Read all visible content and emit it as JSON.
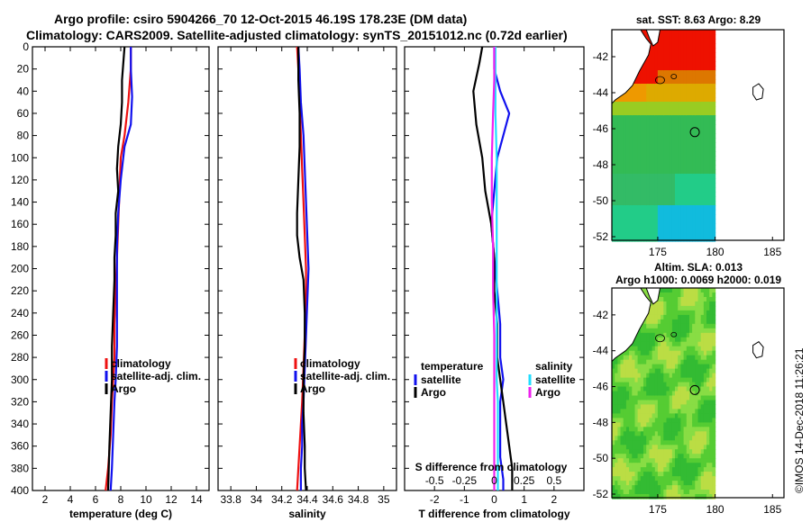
{
  "title": {
    "line1": "Argo profile: csiro 5904266_70 12-Oct-2015 46.19S 178.23E (DM data)",
    "line2": "Climatology: CARS2009. Satellite-adjusted climatology: synTS_20151012.nc (0.72d earlier)"
  },
  "watermark": "©IMOS 14-Dec-2018 11:26:21",
  "colors": {
    "climatology": "#ee1111",
    "satellite": "#1111ee",
    "argo": "#000000",
    "sat_s": "#22ddff",
    "argo_s": "#ee22ee"
  },
  "chart_data": [
    {
      "type": "line",
      "title": "",
      "xlabel": "temperature (deg C)",
      "ylabel": "",
      "xlim": [
        1,
        15
      ],
      "ylim": [
        400,
        0
      ],
      "xticks": [
        "2",
        "4",
        "6",
        "8",
        "10",
        "12",
        "14"
      ],
      "xtick_values": [
        2,
        4,
        6,
        8,
        10,
        12,
        14
      ],
      "yticks": [
        "0",
        "20",
        "40",
        "60",
        "80",
        "100",
        "120",
        "140",
        "160",
        "180",
        "200",
        "220",
        "240",
        "260",
        "280",
        "300",
        "320",
        "340",
        "360",
        "380",
        "400"
      ],
      "legend": [
        "climatology",
        "satellite-adj. clim.",
        "Argo"
      ],
      "legend_position": "center-right",
      "series": [
        {
          "name": "climatology",
          "color": "#ee1111",
          "x": [
            8.8,
            8.8,
            8.6,
            8.3,
            8.0,
            7.9,
            7.8,
            7.7,
            7.6,
            7.5,
            7.5,
            7.4,
            7.3,
            7.2,
            7.0,
            6.8
          ],
          "y": [
            0,
            20,
            50,
            80,
            100,
            130,
            160,
            190,
            220,
            250,
            280,
            300,
            320,
            350,
            380,
            400
          ]
        },
        {
          "name": "satellite-adj. clim.",
          "color": "#1111ee",
          "x": [
            8.8,
            8.8,
            8.9,
            8.8,
            8.3,
            8.0,
            7.8,
            7.7,
            7.7,
            7.7,
            7.7,
            7.6,
            7.5,
            7.4,
            7.3,
            7.2
          ],
          "y": [
            0,
            20,
            45,
            70,
            90,
            120,
            150,
            180,
            210,
            240,
            270,
            300,
            320,
            350,
            380,
            400
          ]
        },
        {
          "name": "Argo",
          "color": "#000000",
          "x": [
            8.3,
            8.2,
            8.1,
            8.1,
            8.0,
            7.8,
            7.7,
            7.8,
            7.6,
            7.6,
            7.5,
            7.5,
            7.4,
            7.3,
            7.3,
            7.2,
            7.1,
            7.0
          ],
          "y": [
            0,
            15,
            30,
            50,
            70,
            90,
            110,
            130,
            150,
            170,
            190,
            210,
            240,
            270,
            300,
            330,
            360,
            400
          ]
        }
      ]
    },
    {
      "type": "line",
      "title": "",
      "xlabel": "salinity",
      "ylabel": "",
      "xlim": [
        33.7,
        35.1
      ],
      "ylim": [
        400,
        0
      ],
      "xticks": [
        "33.8",
        "34",
        "34.2",
        "34.4",
        "34.6",
        "34.8",
        "35"
      ],
      "xtick_values": [
        33.8,
        34.0,
        34.2,
        34.4,
        34.6,
        34.8,
        35.0
      ],
      "legend": [
        "climatology",
        "satellite-adj. clim.",
        "Argo"
      ],
      "legend_position": "center-right",
      "series": [
        {
          "name": "climatology",
          "color": "#ee1111",
          "x": [
            34.32,
            34.33,
            34.34,
            34.35,
            34.36,
            34.37,
            34.38,
            34.39,
            34.39,
            34.38,
            34.37,
            34.36,
            34.35,
            34.34,
            34.33,
            34.32
          ],
          "y": [
            0,
            20,
            50,
            80,
            110,
            140,
            170,
            200,
            230,
            260,
            290,
            320,
            340,
            360,
            380,
            400
          ]
        },
        {
          "name": "satellite-adj. clim.",
          "color": "#1111ee",
          "x": [
            34.33,
            34.34,
            34.35,
            34.37,
            34.38,
            34.39,
            34.4,
            34.41,
            34.4,
            34.39,
            34.38,
            34.37,
            34.36,
            34.36,
            34.35,
            34.35
          ],
          "y": [
            0,
            20,
            50,
            80,
            110,
            140,
            170,
            200,
            230,
            260,
            290,
            320,
            340,
            360,
            380,
            400
          ]
        },
        {
          "name": "Argo",
          "color": "#000000",
          "x": [
            34.33,
            34.33,
            34.34,
            34.34,
            34.33,
            34.32,
            34.32,
            34.34,
            34.37,
            34.38,
            34.38,
            34.37,
            34.37,
            34.38,
            34.38,
            34.39
          ],
          "y": [
            0,
            30,
            60,
            90,
            120,
            150,
            170,
            190,
            210,
            240,
            270,
            300,
            330,
            360,
            380,
            400
          ]
        }
      ]
    },
    {
      "type": "line",
      "title": "",
      "xlabel": "T difference from climatology",
      "x2label": "S difference from climatology",
      "ylabel": "",
      "xlim": [
        -3,
        3
      ],
      "ylim": [
        400,
        0
      ],
      "xticks": [
        "-2",
        "-1",
        "0",
        "1",
        "2"
      ],
      "xtick_values": [
        -2,
        -1,
        0,
        1,
        2
      ],
      "x2lim": [
        -0.75,
        0.75
      ],
      "x2ticks": [
        "-0.5",
        "-0.25",
        "0",
        "0.25",
        "0.5"
      ],
      "x2tick_values": [
        -0.5,
        -0.25,
        0,
        0.25,
        0.5
      ],
      "legend_left_title": "temperature",
      "legend_right_title": "salinity",
      "legend_left": [
        "satellite",
        "Argo"
      ],
      "legend_right": [
        "satellite",
        "Argo"
      ],
      "series": [
        {
          "name": "temperature satellite",
          "color": "#1111ee",
          "x": [
            0.0,
            0.0,
            0.2,
            0.5,
            0.3,
            0.1,
            0.0,
            -0.1,
            0.0,
            0.1,
            0.2,
            0.2,
            0.3,
            0.2,
            0.2,
            0.2,
            0.3,
            0.3
          ],
          "y": [
            0,
            20,
            40,
            60,
            80,
            100,
            130,
            160,
            190,
            220,
            250,
            280,
            300,
            320,
            350,
            370,
            390,
            400
          ]
        },
        {
          "name": "temperature Argo",
          "color": "#000000",
          "x": [
            -0.4,
            -0.5,
            -0.7,
            -0.6,
            -0.4,
            -0.3,
            -0.1,
            0.0,
            0.0,
            0.1,
            0.1,
            0.2,
            0.3,
            0.4,
            0.5,
            0.6,
            0.6
          ],
          "y": [
            0,
            15,
            40,
            70,
            100,
            130,
            160,
            190,
            220,
            250,
            280,
            300,
            320,
            340,
            360,
            380,
            400
          ]
        },
        {
          "name": "salinity satellite",
          "color": "#22ddff",
          "x": [
            0.01,
            0.01,
            0.01,
            0.02,
            0.02,
            0.02,
            0.02,
            0.02,
            0.02,
            0.03,
            0.03,
            0.03,
            0.03
          ],
          "y": [
            0,
            30,
            60,
            100,
            140,
            180,
            220,
            260,
            300,
            320,
            350,
            380,
            400
          ]
        },
        {
          "name": "salinity Argo",
          "color": "#ee22ee",
          "x": [
            0.0,
            0.0,
            -0.01,
            -0.02,
            -0.02,
            -0.01,
            -0.01,
            0.0,
            0.0,
            0.0,
            0.0,
            0.0,
            0.0
          ],
          "y": [
            0,
            30,
            60,
            100,
            140,
            180,
            220,
            260,
            300,
            320,
            350,
            380,
            400
          ]
        }
      ]
    },
    {
      "type": "heatmap",
      "title": "sat. SST: 8.63 Argo: 8.29",
      "xlim": [
        171,
        186
      ],
      "ylim": [
        -52.2,
        -40.5
      ],
      "xticks": [
        "175",
        "180",
        "185"
      ],
      "xtick_values": [
        175,
        180,
        185
      ],
      "yticks": [
        "-42",
        "-44",
        "-46",
        "-48",
        "-50",
        "-52"
      ],
      "ytick_values": [
        -42,
        -44,
        -46,
        -48,
        -50,
        -52
      ],
      "data_east_limit": 180,
      "argo_marker": {
        "lon": 178.23,
        "lat": -46.19
      }
    },
    {
      "type": "heatmap",
      "title_line1": "Altim. SLA: 0.013",
      "title_line2": "Argo h1000: 0.0069 h2000: 0.019",
      "xlim": [
        171,
        186
      ],
      "ylim": [
        -52.2,
        -40.5
      ],
      "xticks": [
        "175",
        "180",
        "185"
      ],
      "xtick_values": [
        175,
        180,
        185
      ],
      "yticks": [
        "-42",
        "-44",
        "-46",
        "-48",
        "-50",
        "-52"
      ],
      "ytick_values": [
        -42,
        -44,
        -46,
        -48,
        -50,
        -52
      ],
      "data_east_limit": 180,
      "argo_marker": {
        "lon": 178.23,
        "lat": -46.19
      }
    }
  ]
}
